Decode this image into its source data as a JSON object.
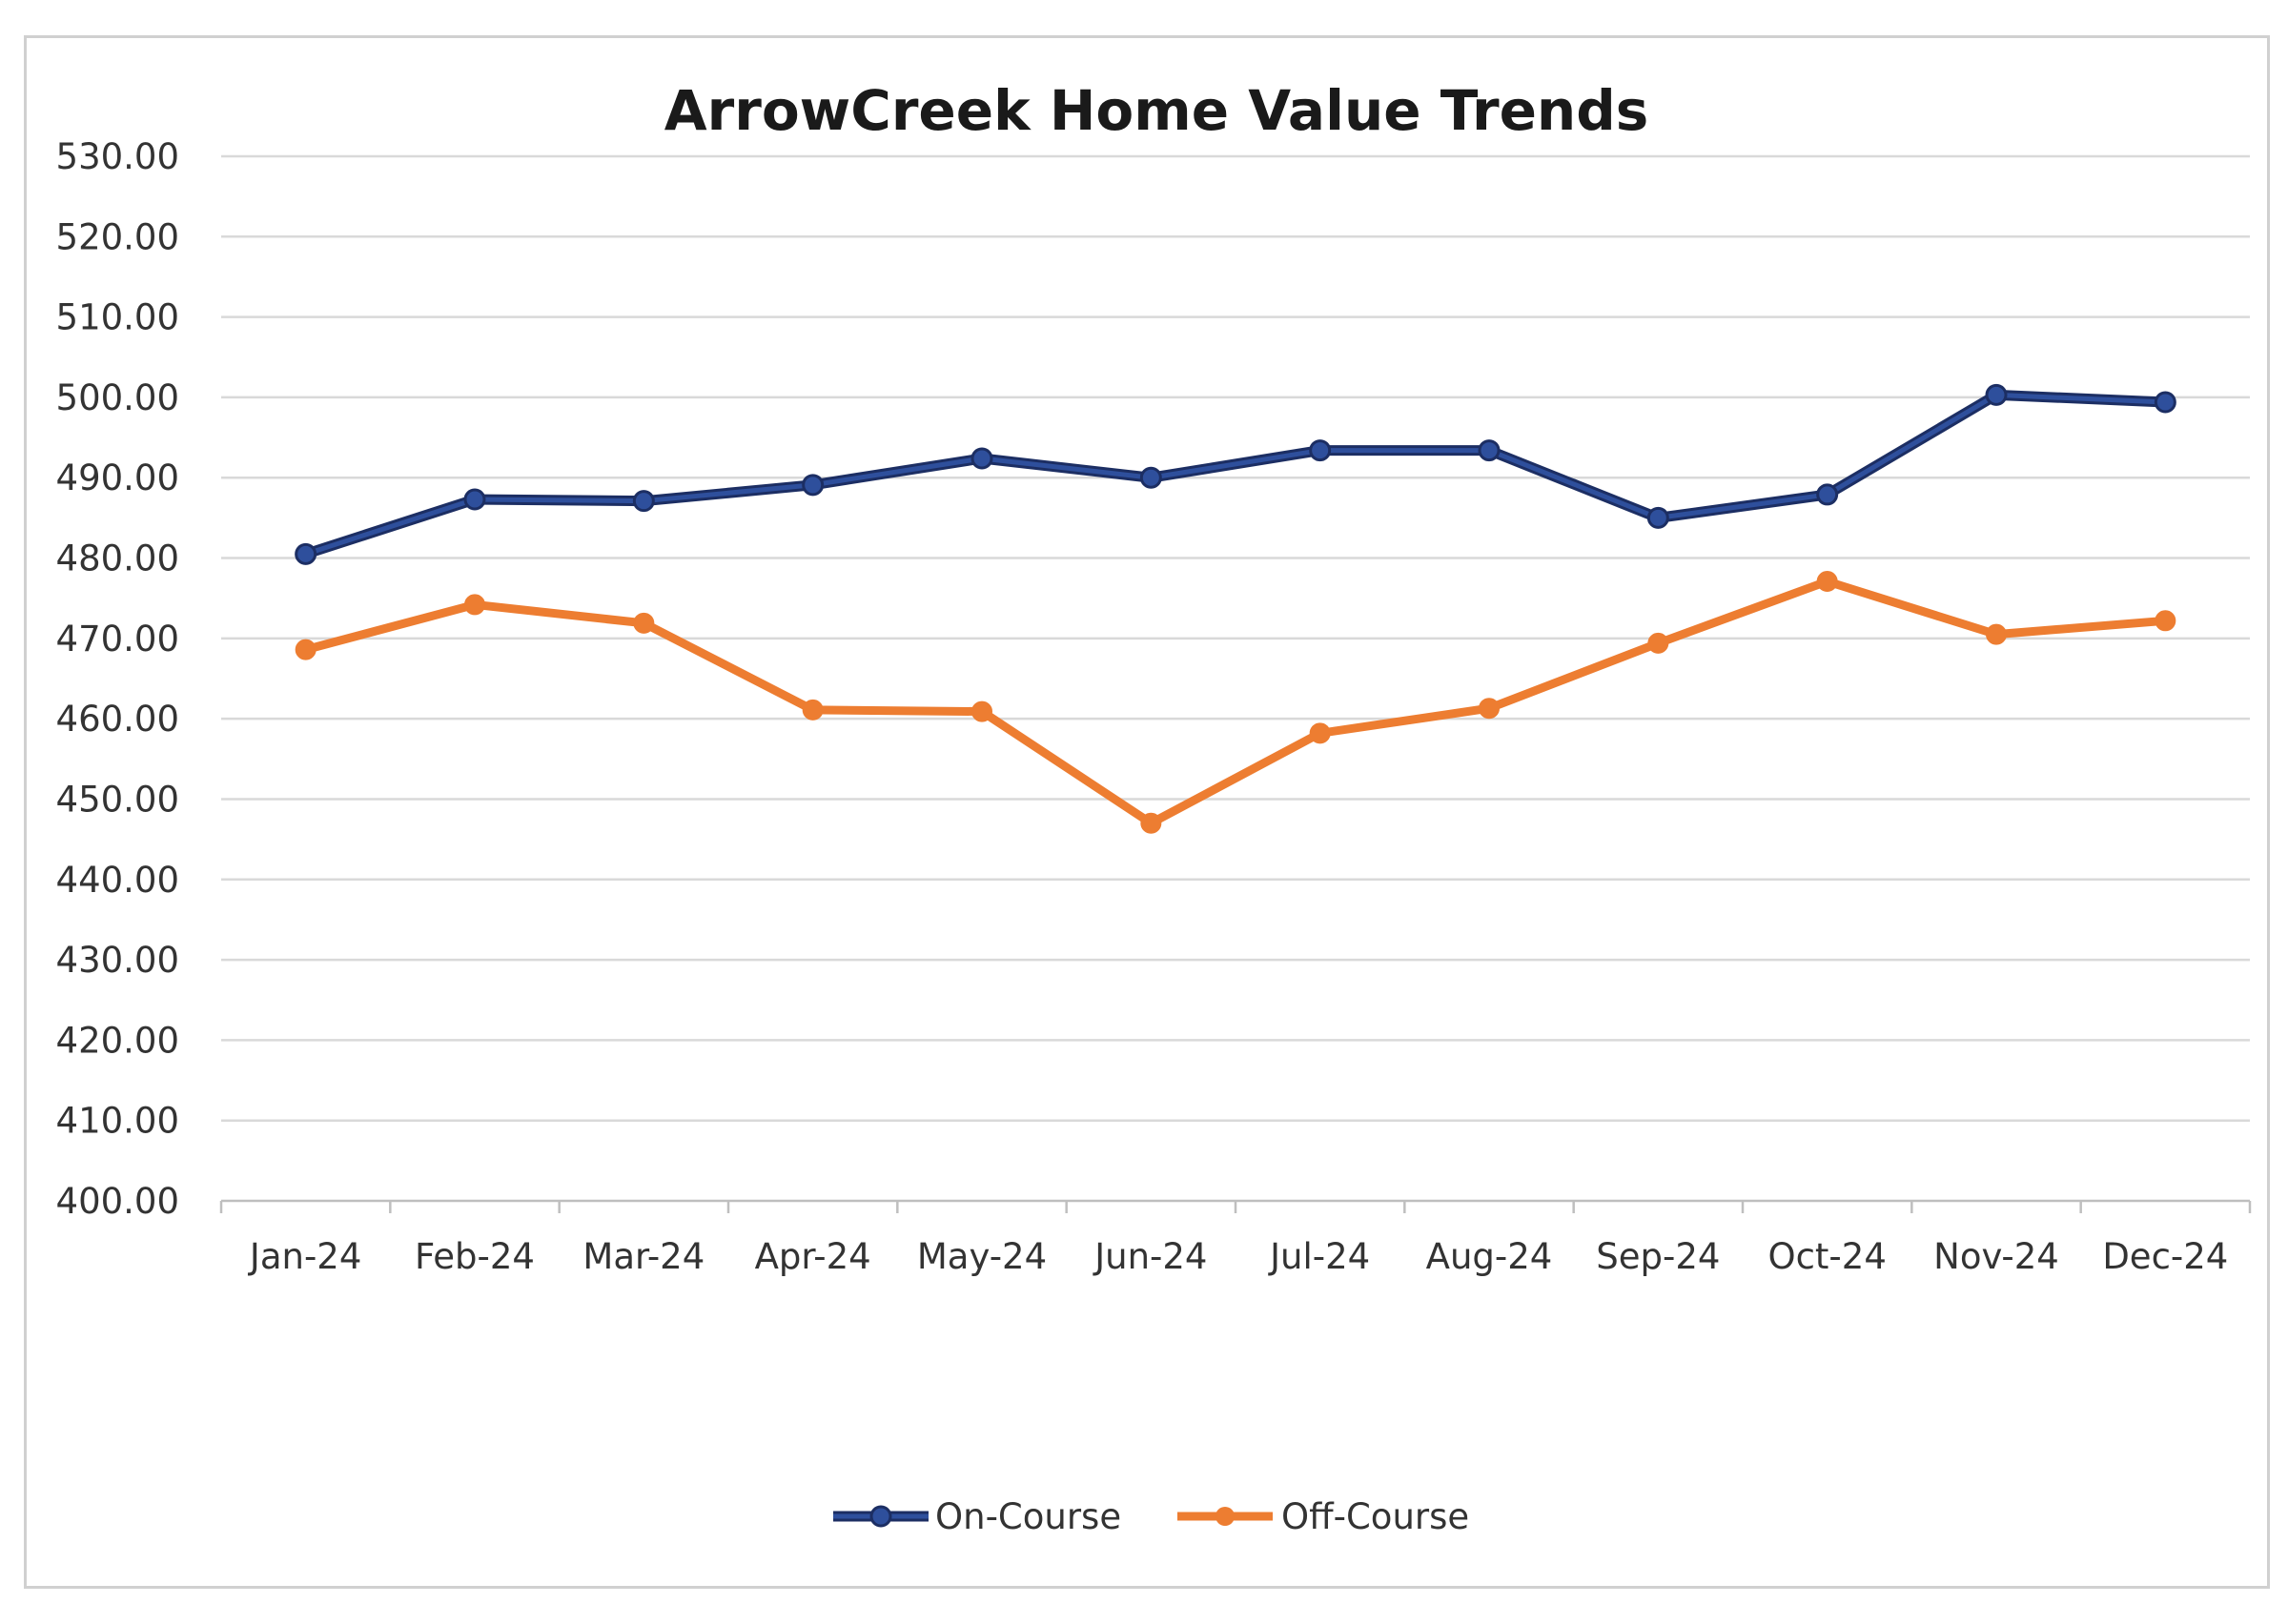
{
  "chart_data": {
    "type": "line",
    "title": "ArrowCreek Home Value Trends",
    "xlabel": "",
    "ylabel": "",
    "categories": [
      "Jan-24",
      "Feb-24",
      "Mar-24",
      "Apr-24",
      "May-24",
      "Jun-24",
      "Jul-24",
      "Aug-24",
      "Sep-24",
      "Oct-24",
      "Nov-24",
      "Dec-24"
    ],
    "ylim": [
      400,
      530
    ],
    "yticks": [
      "400.00",
      "410.00",
      "420.00",
      "430.00",
      "440.00",
      "450.00",
      "460.00",
      "470.00",
      "480.00",
      "490.00",
      "500.00",
      "510.00",
      "520.00",
      "530.00"
    ],
    "grid": true,
    "legend_position": "bottom",
    "series": [
      {
        "name": "On-Course",
        "color": "#2e4f9c",
        "values": [
          480.5,
          487.3,
          487.1,
          489.1,
          492.4,
          490.0,
          493.4,
          493.4,
          485.0,
          487.9,
          500.3,
          499.4
        ]
      },
      {
        "name": "Off-Course",
        "color": "#ed7d31",
        "values": [
          468.6,
          474.2,
          471.9,
          461.1,
          460.9,
          447.0,
          458.2,
          461.3,
          469.4,
          477.1,
          470.5,
          472.2
        ]
      }
    ]
  }
}
